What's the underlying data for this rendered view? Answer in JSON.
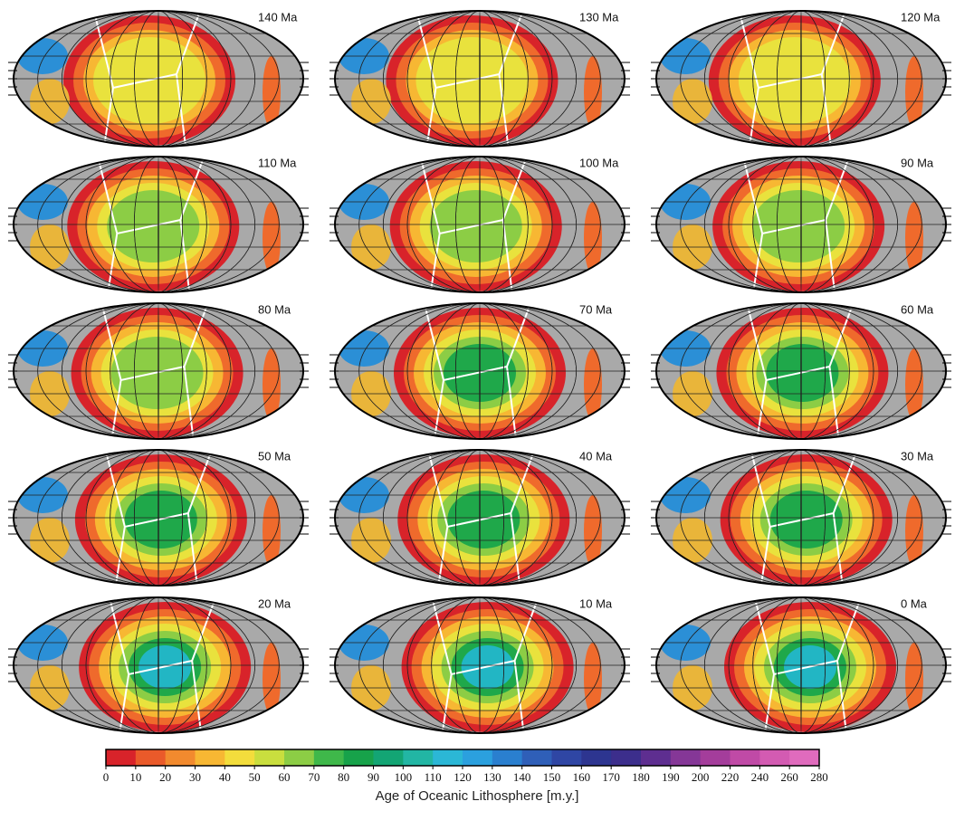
{
  "panels": [
    {
      "label": "140 Ma"
    },
    {
      "label": "130 Ma"
    },
    {
      "label": "120 Ma"
    },
    {
      "label": "110 Ma"
    },
    {
      "label": "100 Ma"
    },
    {
      "label": "90 Ma"
    },
    {
      "label": "80 Ma"
    },
    {
      "label": "70 Ma"
    },
    {
      "label": "60 Ma"
    },
    {
      "label": "50 Ma"
    },
    {
      "label": "40 Ma"
    },
    {
      "label": "30 Ma"
    },
    {
      "label": "20 Ma"
    },
    {
      "label": "10 Ma"
    },
    {
      "label": "0 Ma"
    }
  ],
  "colorbar": {
    "label": "Age of Oceanic Lithosphere [m.y.]",
    "ticks": [
      0,
      10,
      20,
      30,
      40,
      50,
      60,
      70,
      80,
      90,
      100,
      110,
      120,
      130,
      140,
      150,
      160,
      170,
      180,
      190,
      200,
      220,
      240,
      260,
      280
    ],
    "colors": [
      "#d8232a",
      "#ea5a2a",
      "#f28a2e",
      "#f7b733",
      "#f3dd3c",
      "#c9de3e",
      "#8ccd45",
      "#3fb84a",
      "#17a24a",
      "#13a574",
      "#22b6a4",
      "#2bb7d6",
      "#2ba0de",
      "#2a7fcf",
      "#2f5fb8",
      "#2f46a4",
      "#2d3590",
      "#3c2e8c",
      "#5e2e90",
      "#853797",
      "#a43d9b",
      "#c04aa6",
      "#d35bb2",
      "#e06bbd"
    ]
  }
}
